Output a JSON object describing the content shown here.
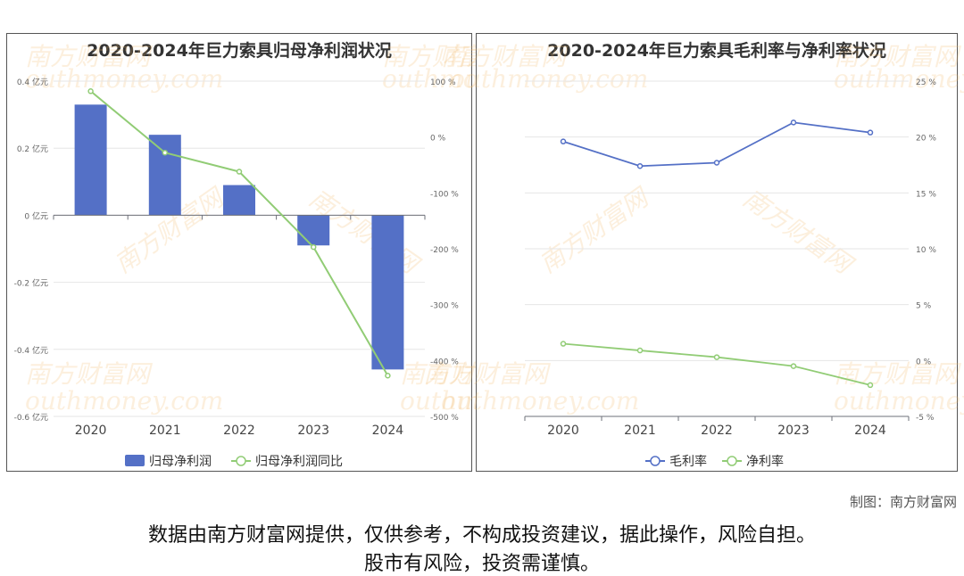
{
  "left_title": "2020-2024年巨力索具归母净利润状况",
  "right_title": "2020-2024年巨力索具毛利率与净利率状况",
  "watermark": {
    "cn": "南方财富网",
    "en": "outhmoney.com"
  },
  "credit": "制图：南方财富网",
  "disclaimer": [
    "数据由南方财富网提供，仅供参考，不构成投资建议，据此操作，风险自担。",
    "股市有风险，投资需谨慎。"
  ],
  "chart_data": [
    {
      "type": "bar",
      "title": "2020-2024年巨力索具归母净利润状况",
      "categories": [
        "2020",
        "2021",
        "2022",
        "2023",
        "2024"
      ],
      "y_left": {
        "ticks": [
          "0.4 亿元",
          "0.2 亿元",
          "0 亿元",
          "-0.2 亿元",
          "-0.4 亿元",
          "-0.6 亿元"
        ],
        "min": -0.6,
        "max": 0.4
      },
      "y_right": {
        "ticks": [
          "100 %",
          "0 %",
          "-100 %",
          "-200 %",
          "-300 %",
          "-400 %",
          "-500 %"
        ],
        "min": -500,
        "max": 100
      },
      "series": [
        {
          "name": "归母净利润",
          "type": "bar",
          "axis": "left",
          "color": "#5470c6",
          "values": [
            0.33,
            0.24,
            0.09,
            -0.09,
            -0.46
          ]
        },
        {
          "name": "归母净利润同比",
          "type": "line",
          "axis": "right",
          "color": "#91cc75",
          "values": [
            82,
            -28,
            -62,
            -197,
            -427
          ]
        }
      ],
      "legend_position": "bottom-center"
    },
    {
      "type": "line",
      "title": "2020-2024年巨力索具毛利率与净利率状况",
      "categories": [
        "2020",
        "2021",
        "2022",
        "2023",
        "2024"
      ],
      "y_right": {
        "ticks": [
          "25 %",
          "20 %",
          "15 %",
          "10 %",
          "5 %",
          "0 %",
          "-5 %"
        ],
        "min": -5,
        "max": 25
      },
      "series": [
        {
          "name": "毛利率",
          "color": "#5470c6",
          "values": [
            19.6,
            17.4,
            17.7,
            21.3,
            20.4
          ]
        },
        {
          "name": "净利率",
          "color": "#91cc75",
          "values": [
            1.5,
            0.9,
            0.3,
            -0.5,
            -2.2
          ]
        }
      ],
      "legend_position": "bottom-center"
    }
  ]
}
